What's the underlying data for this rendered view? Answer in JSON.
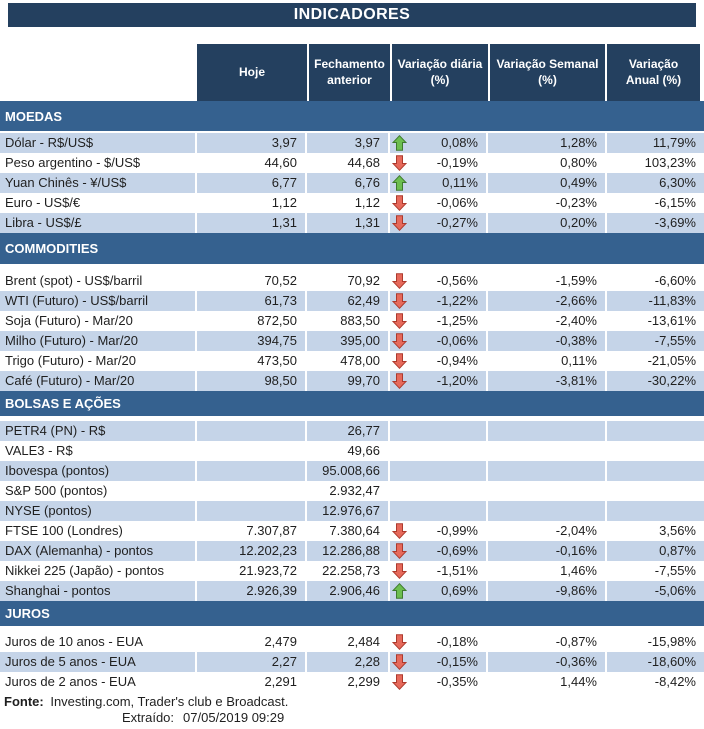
{
  "title": "INDICADORES",
  "columns": [
    "Hoje",
    "Fechamento anterior",
    "Variação diária (%)",
    "Variação Semanal (%)",
    "Variação Anual (%)"
  ],
  "colors": {
    "header_navy": "#24405f",
    "section_blue": "#35618f",
    "shaded_row": "#c5d4e8",
    "arrow_up_green": "#6cbe4f",
    "arrow_down_red": "#e6695b"
  },
  "icons": {
    "up": "arrow-up-icon",
    "down": "arrow-down-icon"
  },
  "sections": [
    {
      "name": "MOEDAS",
      "rows": [
        {
          "label": "Dólar - R$/US$",
          "hoje": "3,97",
          "fechamento": "3,97",
          "arrow": "up",
          "var_diaria": "0,08%",
          "var_semanal": "1,28%",
          "var_anual": "11,79%"
        },
        {
          "label": "Peso argentino - $/US$",
          "hoje": "44,60",
          "fechamento": "44,68",
          "arrow": "down",
          "var_diaria": "-0,19%",
          "var_semanal": "0,80%",
          "var_anual": "103,23%"
        },
        {
          "label": "Yuan Chinês - ¥/US$",
          "hoje": "6,77",
          "fechamento": "6,76",
          "arrow": "up",
          "var_diaria": "0,11%",
          "var_semanal": "0,49%",
          "var_anual": "6,30%"
        },
        {
          "label": "Euro - US$/€",
          "hoje": "1,12",
          "fechamento": "1,12",
          "arrow": "down",
          "var_diaria": "-0,06%",
          "var_semanal": "-0,23%",
          "var_anual": "-6,15%"
        },
        {
          "label": "Libra - US$/£",
          "hoje": "1,31",
          "fechamento": "1,31",
          "arrow": "down",
          "var_diaria": "-0,27%",
          "var_semanal": "0,20%",
          "var_anual": "-3,69%"
        }
      ]
    },
    {
      "name": "COMMODITIES",
      "rows": [
        {
          "label": "Brent (spot) - US$/barril",
          "hoje": "70,52",
          "fechamento": "70,92",
          "arrow": "down",
          "var_diaria": "-0,56%",
          "var_semanal": "-1,59%",
          "var_anual": "-6,60%"
        },
        {
          "label": "WTI (Futuro) - US$/barril",
          "hoje": "61,73",
          "fechamento": "62,49",
          "arrow": "down",
          "var_diaria": "-1,22%",
          "var_semanal": "-2,66%",
          "var_anual": "-11,83%"
        },
        {
          "label": "Soja (Futuro) - Mar/20",
          "hoje": "872,50",
          "fechamento": "883,50",
          "arrow": "down",
          "var_diaria": "-1,25%",
          "var_semanal": "-2,40%",
          "var_anual": "-13,61%"
        },
        {
          "label": "Milho (Futuro) - Mar/20",
          "hoje": "394,75",
          "fechamento": "395,00",
          "arrow": "down",
          "var_diaria": "-0,06%",
          "var_semanal": "-0,38%",
          "var_anual": "-7,55%"
        },
        {
          "label": "Trigo (Futuro) - Mar/20",
          "hoje": "473,50",
          "fechamento": "478,00",
          "arrow": "down",
          "var_diaria": "-0,94%",
          "var_semanal": "0,11%",
          "var_anual": "-21,05%"
        },
        {
          "label": "Café (Futuro) - Mar/20",
          "hoje": "98,50",
          "fechamento": "99,70",
          "arrow": "down",
          "var_diaria": "-1,20%",
          "var_semanal": "-3,81%",
          "var_anual": "-30,22%"
        }
      ]
    },
    {
      "name": "BOLSAS E AÇÕES",
      "rows": [
        {
          "label": "PETR4 (PN) - R$",
          "hoje": "",
          "fechamento": "26,77",
          "arrow": null,
          "var_diaria": "",
          "var_semanal": "",
          "var_anual": ""
        },
        {
          "label": "VALE3 - R$",
          "hoje": "",
          "fechamento": "49,66",
          "arrow": null,
          "var_diaria": "",
          "var_semanal": "",
          "var_anual": ""
        },
        {
          "label": "Ibovespa (pontos)",
          "hoje": "",
          "fechamento": "95.008,66",
          "arrow": null,
          "var_diaria": "",
          "var_semanal": "",
          "var_anual": ""
        },
        {
          "label": "S&P 500 (pontos)",
          "hoje": "",
          "fechamento": "2.932,47",
          "arrow": null,
          "var_diaria": "",
          "var_semanal": "",
          "var_anual": ""
        },
        {
          "label": "NYSE (pontos)",
          "hoje": "",
          "fechamento": "12.976,67",
          "arrow": null,
          "var_diaria": "",
          "var_semanal": "",
          "var_anual": ""
        },
        {
          "label": "FTSE 100 (Londres)",
          "hoje": "7.307,87",
          "fechamento": "7.380,64",
          "arrow": "down",
          "var_diaria": "-0,99%",
          "var_semanal": "-2,04%",
          "var_anual": "3,56%"
        },
        {
          "label": "DAX (Alemanha) - pontos",
          "hoje": "12.202,23",
          "fechamento": "12.286,88",
          "arrow": "down",
          "var_diaria": "-0,69%",
          "var_semanal": "-0,16%",
          "var_anual": "0,87%"
        },
        {
          "label": "Nikkei 225 (Japão) - pontos",
          "hoje": "21.923,72",
          "fechamento": "22.258,73",
          "arrow": "down",
          "var_diaria": "-1,51%",
          "var_semanal": "1,46%",
          "var_anual": "-7,55%"
        },
        {
          "label": "Shanghai - pontos",
          "hoje": "2.926,39",
          "fechamento": "2.906,46",
          "arrow": "up",
          "var_diaria": "0,69%",
          "var_semanal": "-9,86%",
          "var_anual": "-5,06%"
        }
      ]
    },
    {
      "name": "JUROS",
      "rows": [
        {
          "label": "Juros de 10 anos - EUA",
          "hoje": "2,479",
          "fechamento": "2,484",
          "arrow": "down",
          "var_diaria": "-0,18%",
          "var_semanal": "-0,87%",
          "var_anual": "-15,98%"
        },
        {
          "label": "Juros de 5 anos - EUA",
          "hoje": "2,27",
          "fechamento": "2,28",
          "arrow": "down",
          "var_diaria": "-0,15%",
          "var_semanal": "-0,36%",
          "var_anual": "-18,60%"
        },
        {
          "label": "Juros de 2 anos - EUA",
          "hoje": "2,291",
          "fechamento": "2,299",
          "arrow": "down",
          "var_diaria": "-0,35%",
          "var_semanal": "1,44%",
          "var_anual": "-8,42%"
        }
      ]
    }
  ],
  "footer": {
    "fonte_label": "Fonte:",
    "fonte_text": " Investing.com, Trader's club e Broadcast.",
    "extraido_label": "Extraído:",
    "extraido_value": "07/05/2019 09:29"
  }
}
